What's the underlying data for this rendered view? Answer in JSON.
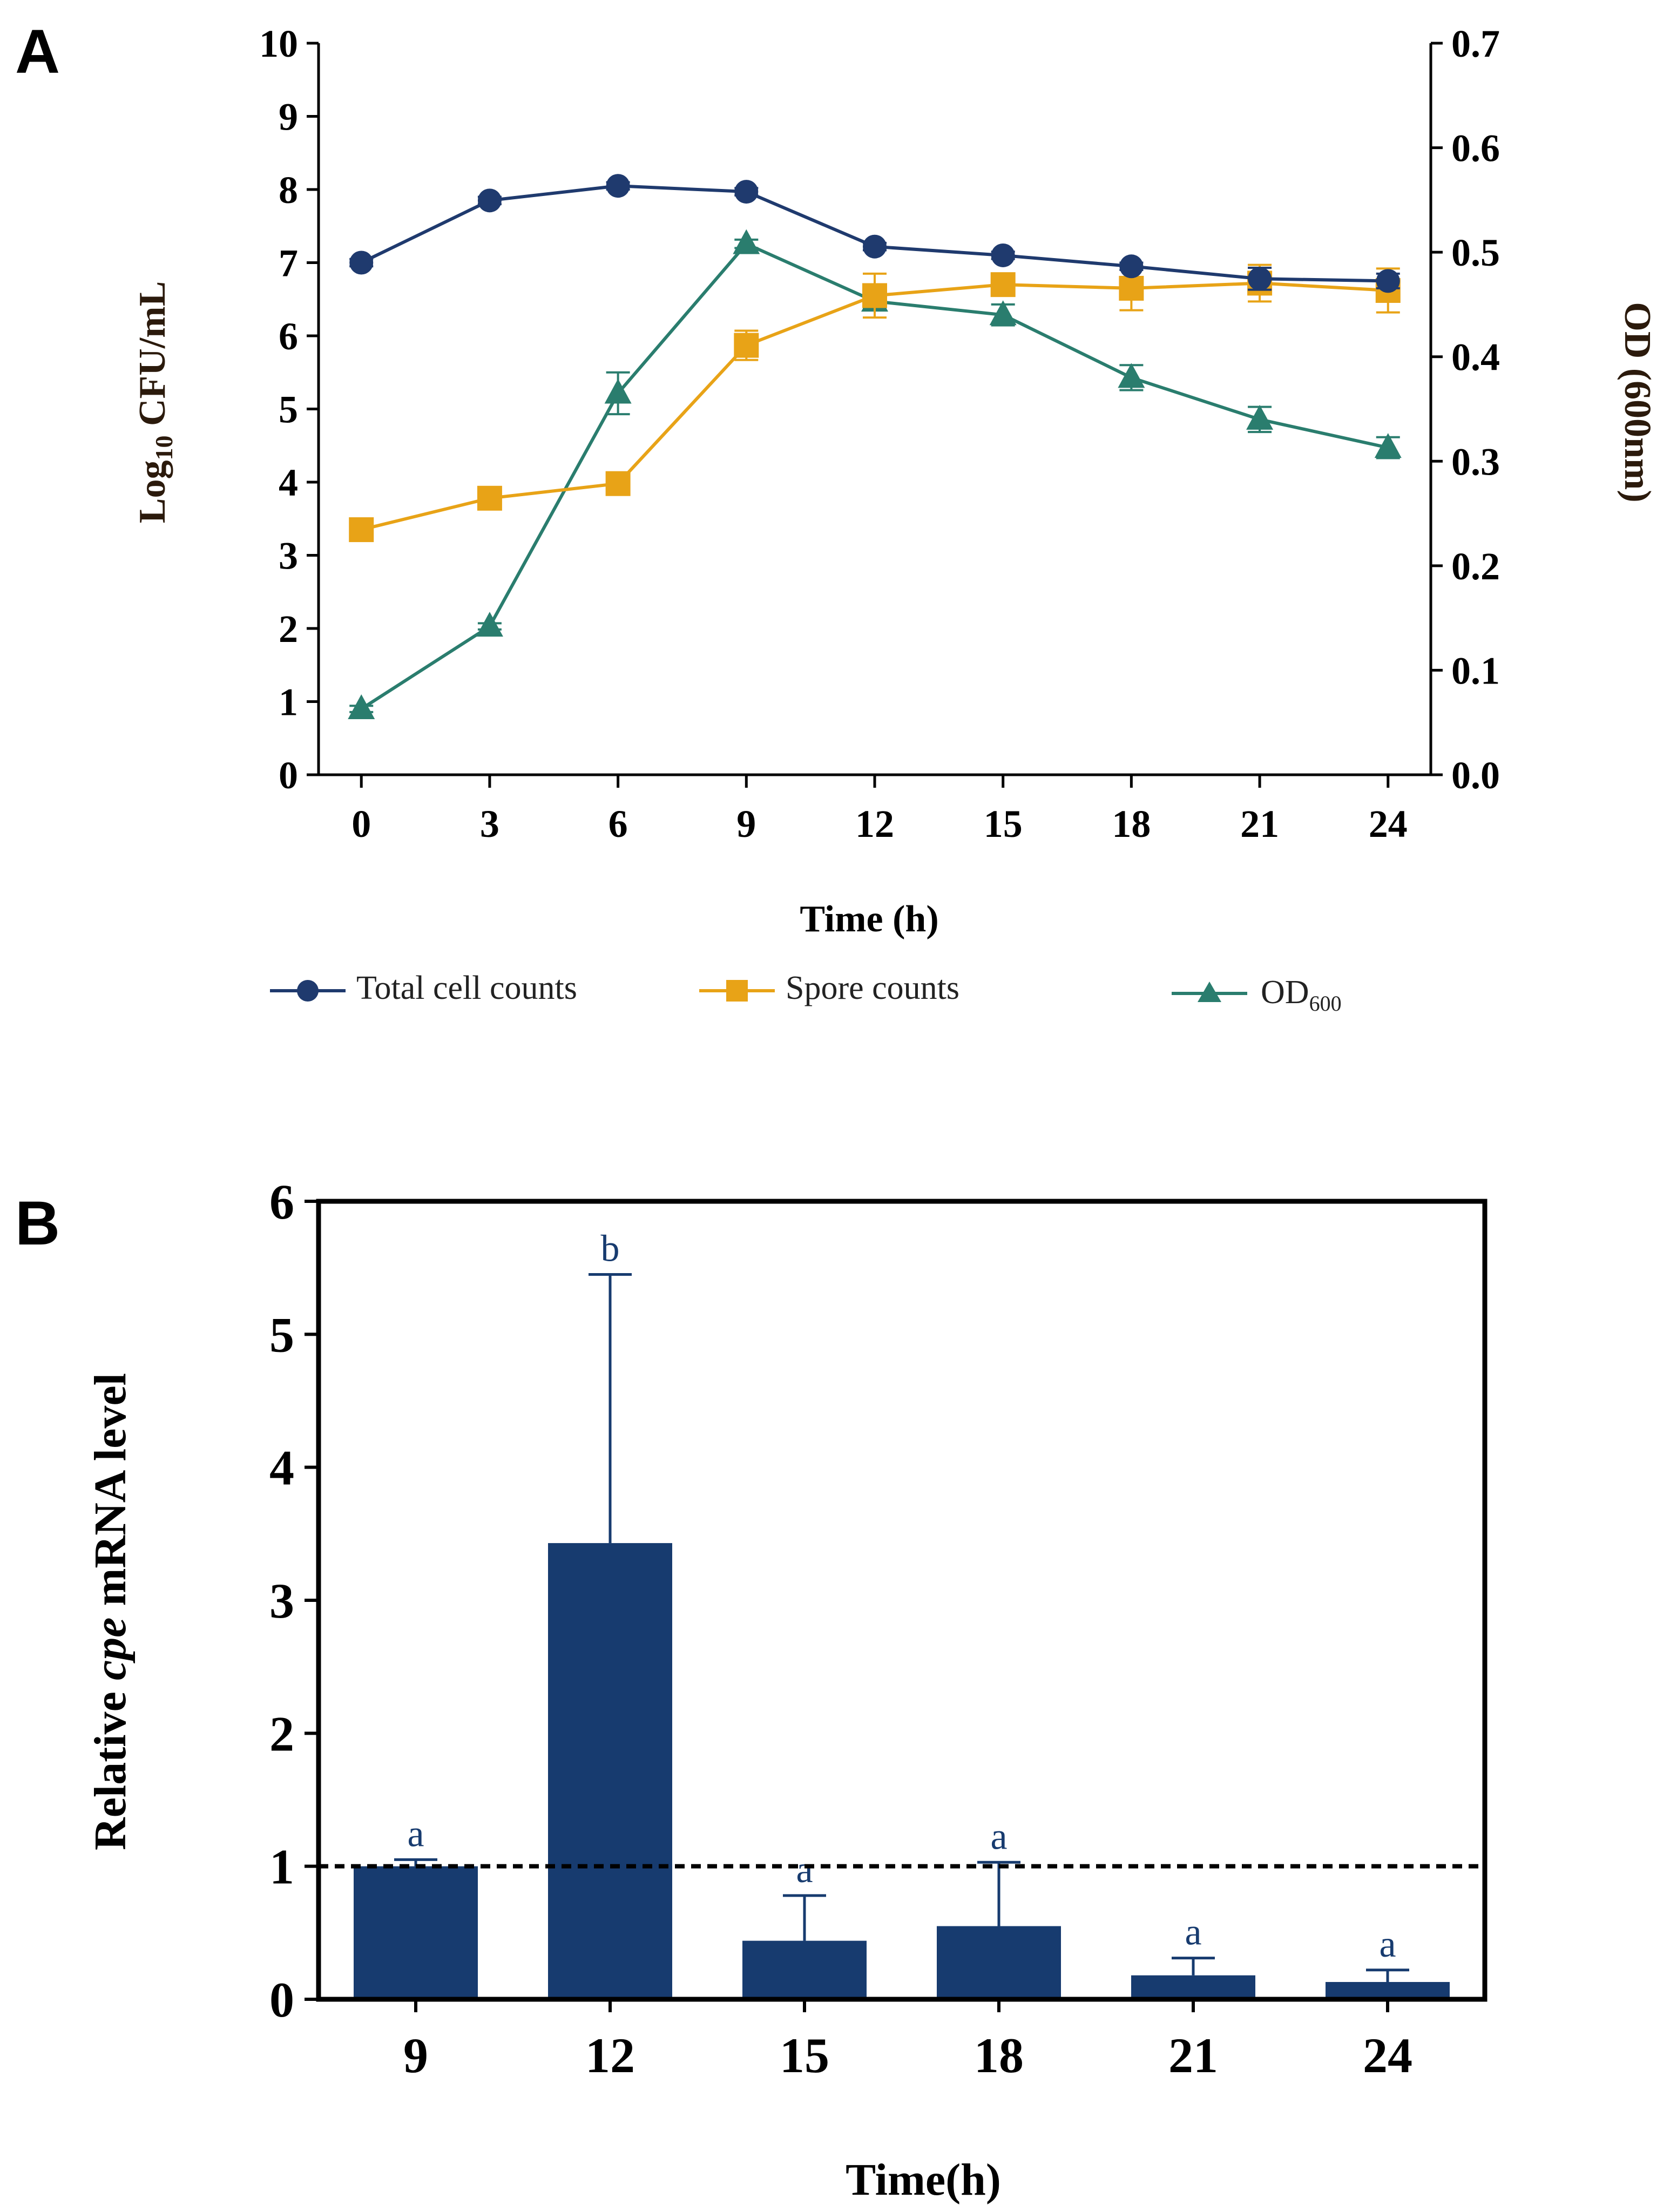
{
  "chart_data": [
    {
      "panel_label": "A",
      "type": "line",
      "x": [
        0,
        3,
        6,
        9,
        12,
        15,
        18,
        21,
        24
      ],
      "x_ticks": [
        "0",
        "3",
        "6",
        "9",
        "12",
        "15",
        "18",
        "21",
        "24"
      ],
      "xlabel": "Time (h)",
      "ylabel_parts": {
        "pre": "Log",
        "sub": "10",
        "post": " CFU/mL"
      },
      "ylabel_right": "OD (600nm)",
      "ylim": [
        0,
        10
      ],
      "ylim_right": [
        0,
        0.7
      ],
      "y_ticks": [
        "0",
        "1",
        "2",
        "3",
        "4",
        "5",
        "6",
        "7",
        "8",
        "9",
        "10"
      ],
      "y_ticks_right": [
        "0.0",
        "0.1",
        "0.2",
        "0.3",
        "0.4",
        "0.5",
        "0.6",
        "0.7"
      ],
      "series": [
        {
          "name": "Total cell counts",
          "axis": "left",
          "marker": "circle",
          "color": "#1f3a6e",
          "values": [
            7.0,
            7.85,
            8.05,
            7.97,
            7.22,
            7.1,
            6.95,
            6.78,
            6.75
          ],
          "errors": [
            0.05,
            0.05,
            0.05,
            0.05,
            0.05,
            0.05,
            0.05,
            0.15,
            0.1
          ]
        },
        {
          "name": "Spore counts",
          "axis": "left",
          "marker": "square",
          "color": "#e8a317",
          "values": [
            3.35,
            3.78,
            3.98,
            5.87,
            6.55,
            6.7,
            6.65,
            6.72,
            6.62
          ],
          "errors": [
            0.05,
            0.05,
            0.05,
            0.2,
            0.3,
            0.15,
            0.3,
            0.25,
            0.3
          ]
        },
        {
          "name_parts": {
            "pre": "OD",
            "sub": "600",
            "post": ""
          },
          "axis": "right",
          "marker": "triangle",
          "color": "#2a7d6e",
          "values": [
            0.063,
            0.142,
            0.365,
            0.508,
            0.453,
            0.44,
            0.38,
            0.34,
            0.313
          ],
          "errors": [
            0.003,
            0.003,
            0.02,
            0.004,
            0.007,
            0.01,
            0.012,
            0.012,
            0.01
          ]
        }
      ],
      "legend_position": "bottom"
    },
    {
      "panel_label": "B",
      "type": "bar",
      "categories": [
        "9",
        "12",
        "15",
        "18",
        "21",
        "24"
      ],
      "values": [
        1.0,
        3.43,
        0.44,
        0.55,
        0.18,
        0.13
      ],
      "errors": [
        0.05,
        2.02,
        0.34,
        0.48,
        0.13,
        0.09
      ],
      "significance": [
        "a",
        "b",
        "a",
        "a",
        "a",
        "a"
      ],
      "xlabel": "Time(h)",
      "ylabel_parts": {
        "pre": "Relative ",
        "italic": "cpe",
        "post": " mRNA level"
      },
      "ylim": [
        0,
        6
      ],
      "y_ticks": [
        "0",
        "1",
        "2",
        "3",
        "4",
        "5",
        "6"
      ],
      "reference_line": 1,
      "bar_color": "#173b6f"
    }
  ]
}
